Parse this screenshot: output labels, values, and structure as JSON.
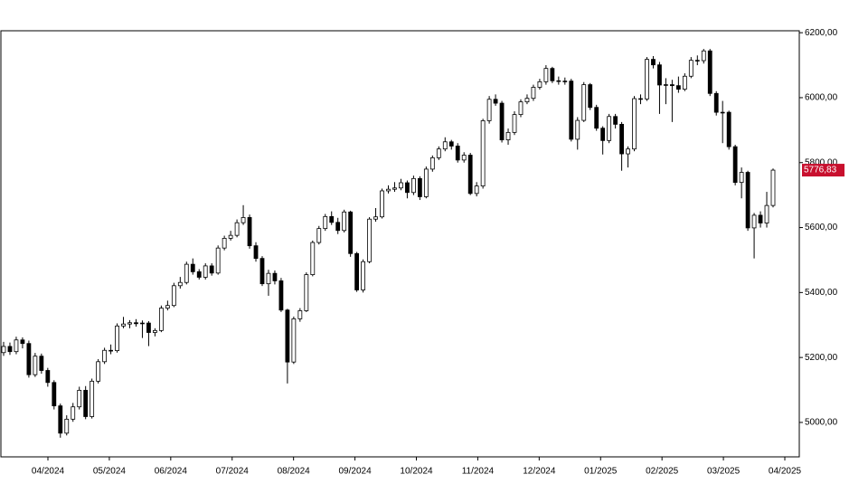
{
  "chart_data": {
    "type": "candlestick",
    "x_tick_labels": [
      "04/2024",
      "05/2024",
      "06/2024",
      "07/2024",
      "08/2024",
      "09/2024",
      "10/2024",
      "11/2024",
      "12/2024",
      "01/2025",
      "02/2025",
      "03/2025",
      "04/2025"
    ],
    "ylim": [
      4894,
      6206
    ],
    "yticks": [
      {
        "value": 5000,
        "label": "5000,00"
      },
      {
        "value": 5200,
        "label": "5200,00"
      },
      {
        "value": 5400,
        "label": "5400,00"
      },
      {
        "value": 5600,
        "label": "5600,00"
      },
      {
        "value": 5800,
        "label": "5800,00"
      },
      {
        "value": 6000,
        "label": "6000,00"
      },
      {
        "value": 6200,
        "label": "6200,00"
      }
    ],
    "up_color": "#ffffff",
    "down_color": "#000000",
    "outline_color": "#000000",
    "last_label_color": "#c8102e",
    "last_value": {
      "value": 5776.83,
      "label": "5776,83"
    },
    "open": [
      5215,
      5234,
      5218,
      5254,
      5243,
      5147,
      5204,
      5160,
      5123,
      5051,
      4967,
      5010,
      5048,
      5099,
      5018,
      5127,
      5187,
      5222,
      5221,
      5297,
      5303,
      5307,
      5304,
      5306,
      5277,
      5283,
      5352,
      5360,
      5421,
      5431,
      5487,
      5464,
      5447,
      5482,
      5460,
      5537,
      5567,
      5576,
      5615,
      5631,
      5544,
      5505,
      5427,
      5459,
      5436,
      5346,
      5186,
      5319,
      5344,
      5455,
      5554,
      5597,
      5634,
      5616,
      5591,
      5648,
      5520,
      5408,
      5495,
      5626,
      5633,
      5713,
      5718,
      5722,
      5738,
      5708,
      5751,
      5695,
      5780,
      5815,
      5842,
      5864,
      5851,
      5808,
      5823,
      5705,
      5728,
      5929,
      5995,
      5983,
      5870,
      5893,
      5948,
      5987,
      5998,
      6032,
      6049,
      6090,
      6052,
      6051,
      6051,
      5872,
      5930,
      6040,
      5970,
      5906,
      5868,
      5942,
      5918,
      5827,
      5842,
      5997,
      5996,
      6118,
      6101,
      6039,
      6040,
      6037,
      6026,
      6066,
      6115,
      6114,
      6144,
      6013,
      5955,
      5955,
      5849,
      5739,
      5770,
      5599,
      5638,
      5614,
      5668
    ],
    "high": [
      5248,
      5246,
      5264,
      5262,
      5252,
      5214,
      5212,
      5168,
      5130,
      5058,
      5022,
      5060,
      5110,
      5112,
      5135,
      5195,
      5230,
      5240,
      5305,
      5325,
      5315,
      5318,
      5314,
      5312,
      5290,
      5360,
      5375,
      5430,
      5448,
      5495,
      5505,
      5472,
      5490,
      5490,
      5545,
      5575,
      5590,
      5625,
      5669,
      5640,
      5555,
      5512,
      5470,
      5468,
      5445,
      5350,
      5326,
      5352,
      5462,
      5560,
      5605,
      5642,
      5650,
      5630,
      5655,
      5652,
      5525,
      5502,
      5632,
      5660,
      5720,
      5730,
      5740,
      5750,
      5745,
      5760,
      5758,
      5788,
      5822,
      5850,
      5878,
      5870,
      5860,
      5832,
      5830,
      5740,
      5935,
      6005,
      6010,
      5990,
      5905,
      5958,
      5995,
      6010,
      6040,
      6058,
      6100,
      6095,
      6065,
      6062,
      6058,
      5940,
      6048,
      6045,
      5978,
      5912,
      5950,
      5950,
      5925,
      5850,
      6005,
      6010,
      6125,
      6128,
      6110,
      6060,
      6055,
      6065,
      6075,
      6125,
      6130,
      6150,
      6150,
      6020,
      5990,
      5960,
      5855,
      5785,
      5775,
      5645,
      5650,
      5710,
      5782
    ],
    "low": [
      5205,
      5208,
      5210,
      5228,
      5138,
      5140,
      5150,
      5110,
      5040,
      4953,
      4960,
      5002,
      5040,
      5010,
      5012,
      5120,
      5180,
      5210,
      5215,
      5290,
      5290,
      5295,
      5260,
      5235,
      5265,
      5278,
      5345,
      5355,
      5412,
      5425,
      5455,
      5440,
      5440,
      5452,
      5455,
      5530,
      5560,
      5570,
      5608,
      5535,
      5495,
      5420,
      5390,
      5425,
      5340,
      5120,
      5180,
      5310,
      5340,
      5450,
      5548,
      5590,
      5608,
      5580,
      5585,
      5510,
      5402,
      5400,
      5490,
      5618,
      5628,
      5705,
      5710,
      5715,
      5690,
      5700,
      5685,
      5690,
      5772,
      5808,
      5835,
      5840,
      5800,
      5800,
      5700,
      5696,
      5720,
      5920,
      5975,
      5862,
      5855,
      5885,
      5940,
      5980,
      5990,
      6025,
      6040,
      6045,
      6040,
      6040,
      5865,
      5840,
      5925,
      5962,
      5898,
      5825,
      5860,
      5905,
      5775,
      5785,
      5835,
      5980,
      5990,
      6090,
      5950,
      5980,
      5925,
      6015,
      6020,
      6060,
      6100,
      6105,
      6005,
      5945,
      5860,
      5840,
      5730,
      5690,
      5590,
      5505,
      5600,
      5600,
      5662
    ],
    "close": [
      5234,
      5218,
      5254,
      5243,
      5147,
      5204,
      5160,
      5123,
      5051,
      4967,
      5010,
      5048,
      5099,
      5018,
      5127,
      5187,
      5222,
      5221,
      5297,
      5303,
      5307,
      5304,
      5306,
      5277,
      5283,
      5352,
      5360,
      5421,
      5431,
      5487,
      5464,
      5447,
      5482,
      5460,
      5537,
      5567,
      5576,
      5615,
      5631,
      5544,
      5505,
      5427,
      5459,
      5436,
      5346,
      5186,
      5319,
      5344,
      5455,
      5554,
      5597,
      5634,
      5616,
      5591,
      5648,
      5520,
      5408,
      5495,
      5626,
      5633,
      5713,
      5718,
      5722,
      5738,
      5708,
      5751,
      5695,
      5780,
      5815,
      5842,
      5864,
      5851,
      5808,
      5823,
      5705,
      5728,
      5929,
      5995,
      5983,
      5870,
      5893,
      5948,
      5987,
      5998,
      6032,
      6049,
      6090,
      6052,
      6051,
      6051,
      5872,
      5930,
      6040,
      5970,
      5906,
      5868,
      5942,
      5918,
      5827,
      5842,
      5997,
      5996,
      6118,
      6101,
      6039,
      6040,
      6037,
      6026,
      6066,
      6115,
      6114,
      6144,
      6013,
      5955,
      5955,
      5849,
      5739,
      5770,
      5599,
      5638,
      5614,
      5668,
      5776.83
    ]
  }
}
